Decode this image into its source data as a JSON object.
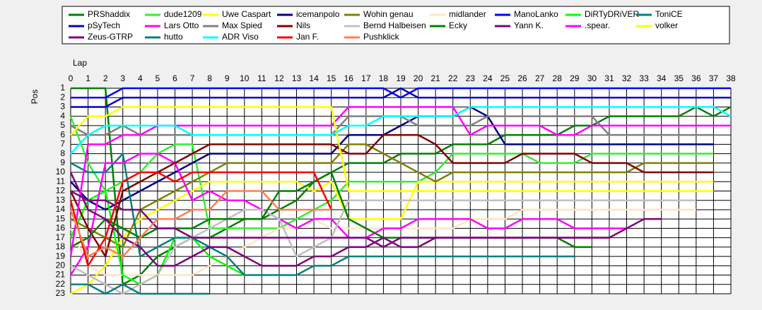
{
  "chart_data": {
    "type": "line",
    "x_label": "Lap",
    "y_label": "Pos",
    "x": [
      0,
      1,
      2,
      3,
      4,
      5,
      6,
      7,
      8,
      9,
      10,
      11,
      12,
      13,
      14,
      15,
      16,
      17,
      18,
      19,
      20,
      21,
      22,
      23,
      24,
      25,
      26,
      27,
      28,
      29,
      30,
      31,
      32,
      33,
      34,
      35,
      36,
      37,
      38
    ],
    "xlim": [
      0,
      38
    ],
    "xticks": [
      0,
      1,
      2,
      3,
      4,
      5,
      6,
      7,
      8,
      9,
      10,
      11,
      12,
      13,
      14,
      15,
      16,
      17,
      18,
      19,
      20,
      21,
      22,
      23,
      24,
      25,
      26,
      27,
      28,
      29,
      30,
      31,
      32,
      33,
      34,
      35,
      36,
      37,
      38
    ],
    "ylim": [
      1,
      23
    ],
    "yticks": [
      1,
      2,
      3,
      4,
      5,
      6,
      7,
      8,
      9,
      10,
      11,
      12,
      13,
      14,
      15,
      16,
      17,
      18,
      19,
      20,
      21,
      22,
      23
    ],
    "y_inverted": true,
    "grid": true,
    "series": [
      {
        "name": "PRShaddix",
        "color": "#008000",
        "values": [
          1,
          1,
          1,
          22,
          21,
          19,
          18,
          17,
          17,
          16,
          15,
          15,
          14,
          13,
          11,
          10,
          9,
          9,
          9,
          8,
          8,
          8,
          7,
          7,
          7,
          6,
          6,
          6,
          6,
          5,
          5,
          4,
          4,
          4,
          4,
          4,
          3,
          4,
          3
        ]
      },
      {
        "name": "dude1209",
        "color": "#33ee33",
        "values": [
          4,
          9,
          12,
          11,
          10,
          8,
          7,
          7,
          16,
          16,
          16,
          16,
          16,
          15,
          14,
          13,
          11,
          11,
          11,
          11,
          11,
          10,
          8,
          8,
          8,
          8,
          8,
          9,
          9,
          9,
          8,
          8,
          8,
          8,
          8,
          8,
          8,
          8,
          null
        ]
      },
      {
        "name": "Uwe Caspart",
        "color": "#ffff00",
        "values": [
          23,
          22,
          20,
          17,
          15,
          14,
          13,
          12,
          11,
          11,
          11,
          11,
          11,
          11,
          12,
          11,
          15,
          15,
          15,
          15,
          11,
          11,
          11,
          11,
          11,
          11,
          11,
          11,
          11,
          11,
          11,
          11,
          11,
          11,
          11,
          11,
          11,
          11,
          null
        ]
      },
      {
        "name": "icemanpolo",
        "color": "#000080",
        "values": [
          11,
          13,
          14,
          13,
          12,
          11,
          10,
          9,
          8,
          8,
          8,
          8,
          8,
          8,
          8,
          8,
          6,
          6,
          6,
          5,
          4,
          4,
          4,
          3,
          4,
          7,
          7,
          7,
          7,
          7,
          7,
          7,
          7,
          7,
          7,
          7,
          7,
          7,
          null
        ]
      },
      {
        "name": "Wohin genau",
        "color": "#808000",
        "values": [
          15,
          16,
          17,
          18,
          14,
          13,
          12,
          11,
          10,
          9,
          9,
          9,
          9,
          9,
          9,
          9,
          7,
          7,
          8,
          9,
          10,
          11,
          10,
          10,
          10,
          10,
          10,
          10,
          10,
          10,
          10,
          10,
          10,
          9,
          9,
          9,
          9,
          9,
          null
        ]
      },
      {
        "name": "midlander",
        "color": "#ffe4c4",
        "values": [
          16,
          20,
          21,
          21,
          21,
          21,
          21,
          21,
          20,
          19,
          18,
          17,
          16,
          16,
          15,
          16,
          16,
          16,
          16,
          16,
          16,
          16,
          16,
          15,
          15,
          15,
          14,
          14,
          14,
          14,
          14,
          14,
          14,
          14,
          14,
          14,
          14,
          null,
          null
        ]
      },
      {
        "name": "ManoLanko",
        "color": "#0000ff",
        "values": [
          2,
          2,
          2,
          1,
          1,
          1,
          1,
          1,
          1,
          1,
          1,
          1,
          1,
          1,
          1,
          1,
          1,
          1,
          1,
          2,
          1,
          1,
          1,
          1,
          1,
          1,
          1,
          1,
          1,
          1,
          1,
          1,
          1,
          1,
          1,
          1,
          1,
          1,
          1
        ]
      },
      {
        "name": "DiRTyDRiVER",
        "color": "#00ff00",
        "values": [
          17,
          13,
          12,
          21,
          22,
          21,
          17,
          17,
          19,
          20,
          21,
          null,
          null,
          null,
          null,
          null,
          null,
          null,
          null,
          null,
          null,
          null,
          null,
          null,
          null,
          null,
          null,
          null,
          null,
          null,
          null,
          null,
          null,
          null,
          null,
          null,
          null,
          null,
          null
        ]
      },
      {
        "name": "ToniCE",
        "color": "#008080",
        "values": [
          9,
          10,
          10,
          8,
          19,
          18,
          17,
          17,
          18,
          19,
          21,
          21,
          21,
          21,
          20,
          20,
          19,
          19,
          19,
          19,
          19,
          19,
          19,
          19,
          19,
          19,
          19,
          19,
          19,
          19,
          null,
          null,
          null,
          null,
          null,
          null,
          null,
          null,
          null
        ]
      },
      {
        "name": "pSyTech",
        "color": "#0000cd",
        "values": [
          3,
          3,
          3,
          2,
          2,
          2,
          2,
          2,
          2,
          2,
          2,
          2,
          2,
          2,
          2,
          2,
          2,
          2,
          2,
          1,
          2,
          2,
          2,
          2,
          2,
          2,
          2,
          2,
          2,
          2,
          2,
          2,
          2,
          2,
          2,
          2,
          2,
          2,
          2
        ]
      },
      {
        "name": "Lars Otto",
        "color": "#ff00ff",
        "values": [
          21,
          18,
          9,
          9,
          8,
          8,
          9,
          13,
          12,
          13,
          13,
          14,
          15,
          16,
          15,
          15,
          17,
          17,
          16,
          16,
          15,
          15,
          15,
          15,
          16,
          16,
          15,
          15,
          15,
          16,
          16,
          16,
          16,
          null,
          null,
          null,
          null,
          null,
          null
        ]
      },
      {
        "name": "Max Spied",
        "color": "#808080",
        "values": [
          5,
          6,
          6,
          5,
          6,
          6,
          6,
          6,
          6,
          6,
          6,
          6,
          6,
          6,
          6,
          6,
          4,
          4,
          4,
          4,
          5,
          5,
          5,
          5,
          4,
          4,
          4,
          4,
          4,
          4,
          4,
          6,
          6,
          6,
          6,
          6,
          6,
          6,
          null
        ]
      },
      {
        "name": "Nils",
        "color": "#800000",
        "values": [
          12,
          16,
          19,
          12,
          11,
          10,
          9,
          8,
          7,
          7,
          7,
          7,
          7,
          7,
          7,
          7,
          8,
          8,
          6,
          6,
          6,
          7,
          9,
          9,
          9,
          9,
          8,
          8,
          8,
          8,
          9,
          9,
          9,
          10,
          10,
          10,
          10,
          10,
          null
        ]
      },
      {
        "name": "Bernd Halbeisen",
        "color": "#c0c0c0",
        "values": [
          20,
          21,
          22,
          23,
          22,
          21,
          18,
          17,
          16,
          15,
          14,
          14,
          15,
          19,
          18,
          17,
          13,
          13,
          13,
          13,
          13,
          13,
          13,
          13,
          13,
          13,
          13,
          13,
          13,
          13,
          13,
          13,
          13,
          13,
          13,
          13,
          13,
          null,
          null
        ]
      },
      {
        "name": "Ecky",
        "color": "#008000",
        "values": [
          18,
          17,
          15,
          16,
          17,
          16,
          16,
          16,
          15,
          15,
          15,
          15,
          12,
          12,
          11,
          10,
          15,
          16,
          17,
          17,
          17,
          17,
          17,
          17,
          17,
          17,
          17,
          17,
          17,
          18,
          18,
          null,
          null,
          null,
          null,
          null,
          null,
          null,
          null
        ]
      },
      {
        "name": "Yann K.",
        "color": "#800080",
        "values": [
          10,
          14,
          15,
          17,
          18,
          20,
          20,
          19,
          18,
          18,
          19,
          20,
          20,
          20,
          19,
          19,
          18,
          18,
          17,
          18,
          18,
          17,
          17,
          17,
          17,
          17,
          17,
          17,
          17,
          17,
          17,
          17,
          16,
          15,
          15,
          null,
          null,
          null,
          null
        ]
      },
      {
        "name": ".spear.",
        "color": "#ff00ff",
        "values": [
          19,
          7,
          7,
          6,
          6,
          5,
          5,
          5,
          5,
          5,
          5,
          5,
          5,
          5,
          5,
          5,
          3,
          3,
          3,
          3,
          3,
          3,
          3,
          6,
          5,
          5,
          5,
          5,
          6,
          6,
          5,
          5,
          5,
          5,
          5,
          5,
          5,
          5,
          5
        ]
      },
      {
        "name": "volker",
        "color": "#ffff00",
        "values": [
          6,
          4,
          4,
          3,
          3,
          3,
          3,
          3,
          3,
          3,
          3,
          3,
          3,
          3,
          3,
          3,
          12,
          12,
          12,
          12,
          12,
          12,
          12,
          12,
          12,
          12,
          12,
          12,
          12,
          12,
          12,
          12,
          12,
          12,
          12,
          12,
          12,
          12,
          null
        ]
      },
      {
        "name": "Zeus-GTRP",
        "color": "#800080",
        "values": [
          12,
          13,
          13,
          14,
          14,
          16,
          16,
          17,
          17,
          17,
          17,
          17,
          17,
          17,
          17,
          17,
          17,
          17,
          18,
          17,
          17,
          17,
          17,
          17,
          17,
          17,
          17,
          17,
          17,
          17,
          17,
          17,
          null,
          null,
          null,
          null,
          null,
          null,
          null
        ]
      },
      {
        "name": "hutto",
        "color": "#008080",
        "values": [
          22,
          22,
          23,
          22,
          23,
          23,
          23,
          23,
          23,
          null,
          null,
          null,
          null,
          null,
          null,
          null,
          null,
          null,
          null,
          null,
          null,
          null,
          null,
          null,
          null,
          null,
          null,
          null,
          null,
          null,
          null,
          null,
          null,
          null,
          null,
          null,
          null,
          null,
          null
        ]
      },
      {
        "name": "ADR Viso",
        "color": "#00ffff",
        "values": [
          8,
          6,
          5,
          5,
          5,
          5,
          5,
          6,
          6,
          6,
          6,
          6,
          6,
          6,
          6,
          6,
          5,
          5,
          4,
          4,
          4,
          4,
          4,
          3,
          3,
          3,
          3,
          3,
          3,
          3,
          3,
          3,
          3,
          3,
          3,
          3,
          3,
          3,
          4
        ]
      },
      {
        "name": "Jan F.",
        "color": "#ff0000",
        "values": [
          13,
          20,
          17,
          11,
          10,
          10,
          11,
          10,
          10,
          10,
          10,
          10,
          10,
          10,
          10,
          14,
          null,
          null,
          null,
          null,
          null,
          null,
          null,
          null,
          null,
          null,
          null,
          null,
          null,
          null,
          null,
          null,
          null,
          null,
          null,
          null,
          null,
          null,
          null
        ]
      },
      {
        "name": "Pushklick",
        "color": "#ff7f50",
        "values": [
          14,
          19,
          18,
          19,
          17,
          15,
          15,
          14,
          14,
          12,
          12,
          12,
          14,
          14,
          14,
          14,
          null,
          null,
          null,
          null,
          null,
          null,
          null,
          null,
          null,
          null,
          null,
          null,
          null,
          null,
          null,
          null,
          null,
          null,
          null,
          null,
          null,
          null,
          null
        ]
      }
    ]
  }
}
